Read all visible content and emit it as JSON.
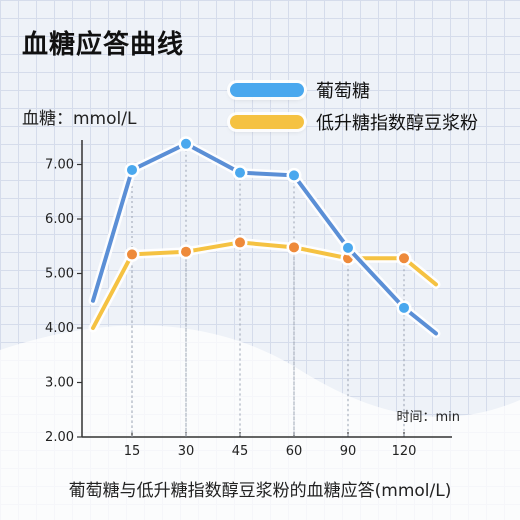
{
  "title": "血糖应答曲线",
  "caption": "葡萄糖与低升糖指数醇豆浆粉的血糖应答(mmol/L)",
  "colors": {
    "glucose": "#5b8fd6",
    "glucose_dot": "#4aa8ee",
    "product": "#f5c242",
    "product_dot": "#ee8a3a",
    "axis": "#333333"
  },
  "chart_data": {
    "type": "line",
    "ylabel": "血糖：mmol/L",
    "xlabel": "时间：min",
    "y_ticks": [
      "2.00",
      "3.00",
      "4.00",
      "5.00",
      "6.00",
      "7.00"
    ],
    "x_ticks": [
      "15",
      "30",
      "45",
      "60",
      "90",
      "120"
    ],
    "ylim": [
      2.0,
      7.6
    ],
    "grid": true,
    "legend_position": "top-right",
    "series": [
      {
        "name": "葡萄糖",
        "points": [
          {
            "x": "start",
            "y": 4.5
          },
          {
            "x": "15",
            "y": 6.9,
            "marker": true
          },
          {
            "x": "30",
            "y": 7.38,
            "marker": true
          },
          {
            "x": "45",
            "y": 6.85,
            "marker": true
          },
          {
            "x": "60",
            "y": 6.8,
            "marker": true
          },
          {
            "x": "90",
            "y": 5.47,
            "marker": true
          },
          {
            "x": "120",
            "y": 4.37,
            "marker": true
          },
          {
            "x": "end",
            "y": 3.9
          }
        ]
      },
      {
        "name": "低升糖指数醇豆浆粉",
        "points": [
          {
            "x": "start",
            "y": 4.0
          },
          {
            "x": "15",
            "y": 5.35,
            "marker": true
          },
          {
            "x": "30",
            "y": 5.4,
            "marker": true
          },
          {
            "x": "45",
            "y": 5.57,
            "marker": true
          },
          {
            "x": "60",
            "y": 5.48,
            "marker": true
          },
          {
            "x": "90",
            "y": 5.28,
            "marker": true
          },
          {
            "x": "120",
            "y": 5.28,
            "marker": true
          },
          {
            "x": "end",
            "y": 4.8
          }
        ]
      }
    ]
  }
}
